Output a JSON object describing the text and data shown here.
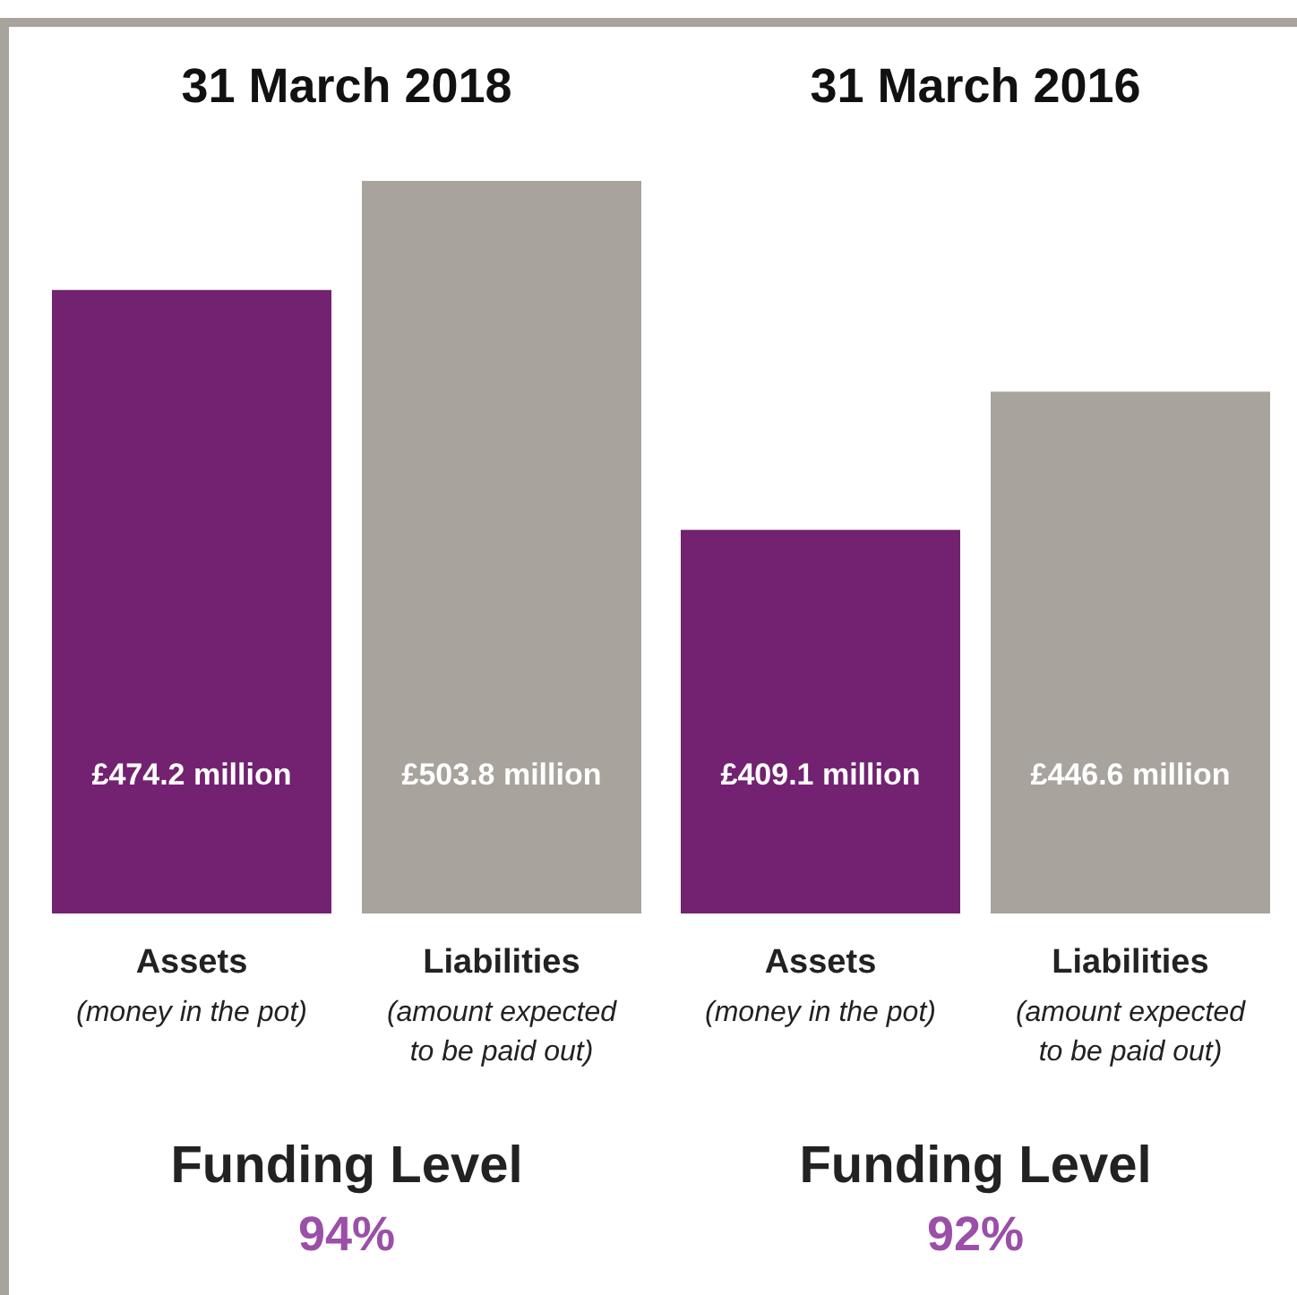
{
  "chart_data": {
    "type": "bar",
    "categories": [
      "Assets (money in the pot)",
      "Liabilities (amount expected to be paid out)",
      "Assets (money in the pot)",
      "Liabilities (amount expected to be paid out)"
    ],
    "values": [
      474.2,
      503.8,
      409.1,
      446.6
    ],
    "colors": [
      "#722270",
      "#a8a39c",
      "#722270",
      "#a8a39c"
    ],
    "ylim": [
      305,
      503.8
    ],
    "tick_labels": false,
    "value_labels": [
      "£474.2 million",
      "£503.8 million",
      "£409.1 million",
      "£446.6 million"
    ],
    "annotations": [
      "31 March 2018",
      "31 March 2016",
      "Funding Level",
      "94%",
      "Funding Level",
      "92%"
    ]
  }
}
